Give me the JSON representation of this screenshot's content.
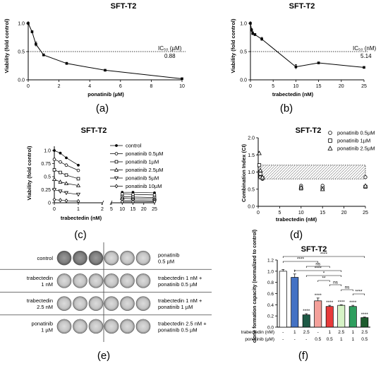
{
  "panel_labels": {
    "a": "(a)",
    "b": "(b)",
    "c": "(c)",
    "d": "(d)",
    "e": "(e)",
    "f": "(f)"
  },
  "chart_data": [
    {
      "id": "a",
      "type": "line",
      "title": "SFT-T2",
      "xlabel": "ponatinib (µM)",
      "ylabel": "Viability (fold control)",
      "xlim": [
        0,
        10
      ],
      "ylim": [
        0,
        1.0
      ],
      "xticks": [
        "0",
        "2",
        "4",
        "6",
        "8",
        "10"
      ],
      "yticks": [
        "0.0",
        "0.5",
        "1.0"
      ],
      "x": [
        0,
        0.25,
        0.5,
        1,
        2.5,
        5,
        10
      ],
      "values": [
        1.0,
        0.85,
        0.63,
        0.44,
        0.29,
        0.17,
        0.02
      ],
      "errors": [
        0,
        0.02,
        0.04,
        0.02,
        0.02,
        0.01,
        0.01
      ],
      "threshold": 0.5,
      "ic50_label": "IC₅₀ (µM)",
      "ic50_value": "0.88"
    },
    {
      "id": "b",
      "type": "line",
      "title": "SFT-T2",
      "xlabel": "trabectedin (nM)",
      "ylabel": "Viability (fold control)",
      "xlim": [
        0,
        25
      ],
      "ylim": [
        0,
        1.0
      ],
      "xticks": [
        "0",
        "5",
        "10",
        "15",
        "20",
        "25"
      ],
      "yticks": [
        "0.0",
        "0.5",
        "1.0"
      ],
      "x": [
        0,
        0.25,
        0.5,
        1,
        2.5,
        10,
        15,
        25
      ],
      "values": [
        1.0,
        0.88,
        0.82,
        0.8,
        0.72,
        0.23,
        0.3,
        0.22
      ],
      "errors": [
        0,
        0.03,
        0.03,
        0.02,
        0.03,
        0.04,
        0.01,
        0.01
      ],
      "threshold": 0.5,
      "ic50_label": "IC₅₀ (nM)",
      "ic50_value": "5.14"
    },
    {
      "id": "c",
      "type": "line",
      "title": "SFT-T2",
      "xlabel": "trabectedin (nM)",
      "ylabel": "Viability (fold control)",
      "ylim": [
        0,
        1.0
      ],
      "xticks": [
        "0",
        "1",
        "2",
        "5",
        "10",
        "15",
        "20",
        "25"
      ],
      "yticks": [
        "0",
        "0.25",
        "0.5",
        "0.75",
        "1.0"
      ],
      "x": [
        0,
        0.25,
        0.5,
        1,
        10,
        15,
        25
      ],
      "series": [
        {
          "name": "control",
          "marker": "filled-circle",
          "values": [
            1.0,
            0.95,
            0.86,
            0.72,
            0.2,
            0.2,
            0.19
          ]
        },
        {
          "name": "ponatinib 0.5µM",
          "marker": "circle",
          "values": [
            0.83,
            0.78,
            0.72,
            0.62,
            0.17,
            0.16,
            0.15
          ]
        },
        {
          "name": "ponatinib 1µM",
          "marker": "square",
          "values": [
            0.63,
            0.58,
            0.53,
            0.46,
            0.12,
            0.11,
            0.1
          ]
        },
        {
          "name": "ponatinib 2.5µM",
          "marker": "triangle-up",
          "values": [
            0.45,
            0.4,
            0.37,
            0.33,
            0.09,
            0.08,
            0.07
          ]
        },
        {
          "name": "ponatinib 5µM",
          "marker": "triangle-down",
          "values": [
            0.25,
            0.22,
            0.19,
            0.16,
            0.05,
            0.05,
            0.04
          ]
        },
        {
          "name": "ponatinib 10µM",
          "marker": "diamond",
          "values": [
            0.06,
            0.05,
            0.04,
            0.03,
            0.02,
            0.02,
            0.02
          ]
        }
      ]
    },
    {
      "id": "d",
      "type": "scatter",
      "title": "SFT-T2",
      "xlabel": "trabectedin (nM)",
      "ylabel": "Combination Index (CI)",
      "xlim": [
        0,
        25
      ],
      "ylim": [
        0,
        2.0
      ],
      "xticks": [
        "0",
        "5",
        "10",
        "15",
        "20",
        "25"
      ],
      "yticks": [
        "0.0",
        "0.5",
        "1.0",
        "1.5",
        "2.0"
      ],
      "band": [
        0.8,
        1.2
      ],
      "series": [
        {
          "name": "ponatinib 0.5µM",
          "marker": "circle",
          "x": [
            0.25,
            0.5,
            1,
            10,
            15,
            25
          ],
          "y": [
            1.0,
            0.85,
            0.8,
            0.6,
            0.6,
            0.85
          ]
        },
        {
          "name": "ponatinib 1µM",
          "marker": "square",
          "x": [
            0.25,
            0.5,
            1,
            10,
            15,
            25
          ],
          "y": [
            1.2,
            0.95,
            0.82,
            0.52,
            0.52,
            0.57
          ]
        },
        {
          "name": "ponatinib 2.5µM",
          "marker": "triangle-up",
          "x": [
            0.25,
            0.5,
            1,
            10,
            15,
            25
          ],
          "y": [
            1.55,
            1.05,
            0.85,
            0.55,
            0.5,
            0.6
          ]
        }
      ]
    },
    {
      "id": "f",
      "type": "bar",
      "title": "SFT-T2",
      "ylabel": "clone formation capacity (normalized to control)",
      "ylim": [
        0,
        1.2
      ],
      "yticks": [
        "0.0",
        "0.2",
        "0.4",
        "0.6",
        "0.8",
        "1.0",
        "1.2"
      ],
      "row_labels": [
        "trabectedin (nM)",
        "ponatinib (µM)"
      ],
      "trabectedin": [
        "-",
        "1",
        "2.5",
        "-",
        "1",
        "2.5",
        "1",
        "2.5"
      ],
      "ponatinib": [
        "-",
        "-",
        "-",
        "0.5",
        "0.5",
        "1",
        "1",
        "0.5"
      ],
      "values": [
        1.0,
        0.89,
        0.22,
        0.47,
        0.37,
        0.39,
        0.37,
        0.17
      ],
      "errors": [
        0.03,
        0.06,
        0.02,
        0.05,
        0.02,
        0.01,
        0.02,
        0.01
      ],
      "colors": [
        "#ffffff",
        "#4472c4",
        "#1e5a46",
        "#f4a09a",
        "#e83a3a",
        "#d6f3c6",
        "#2e9e5e",
        "#1e5c2e"
      ],
      "bar_stars": [
        "",
        "*",
        "****",
        "****",
        "****",
        "****",
        "****",
        "****"
      ],
      "comparisons": [
        "****",
        "****",
        "ns",
        "****",
        "*",
        "**",
        "ns",
        "ns",
        "****"
      ]
    }
  ],
  "well_plate": {
    "left_labels": [
      "control",
      "trabectedin\n1 nM",
      "trabectedin\n2.5 nM",
      "ponatinib\n1 µM"
    ],
    "right_labels": [
      "ponatinib\n0.5 µM",
      "trabectedin 1 nM +\nponatinib 0.5 µM",
      "trabectedin 1 nM +\nponatinib 1 µM",
      "trabectedin 2.5 nM +\nponatinib 0.5 µM"
    ]
  }
}
